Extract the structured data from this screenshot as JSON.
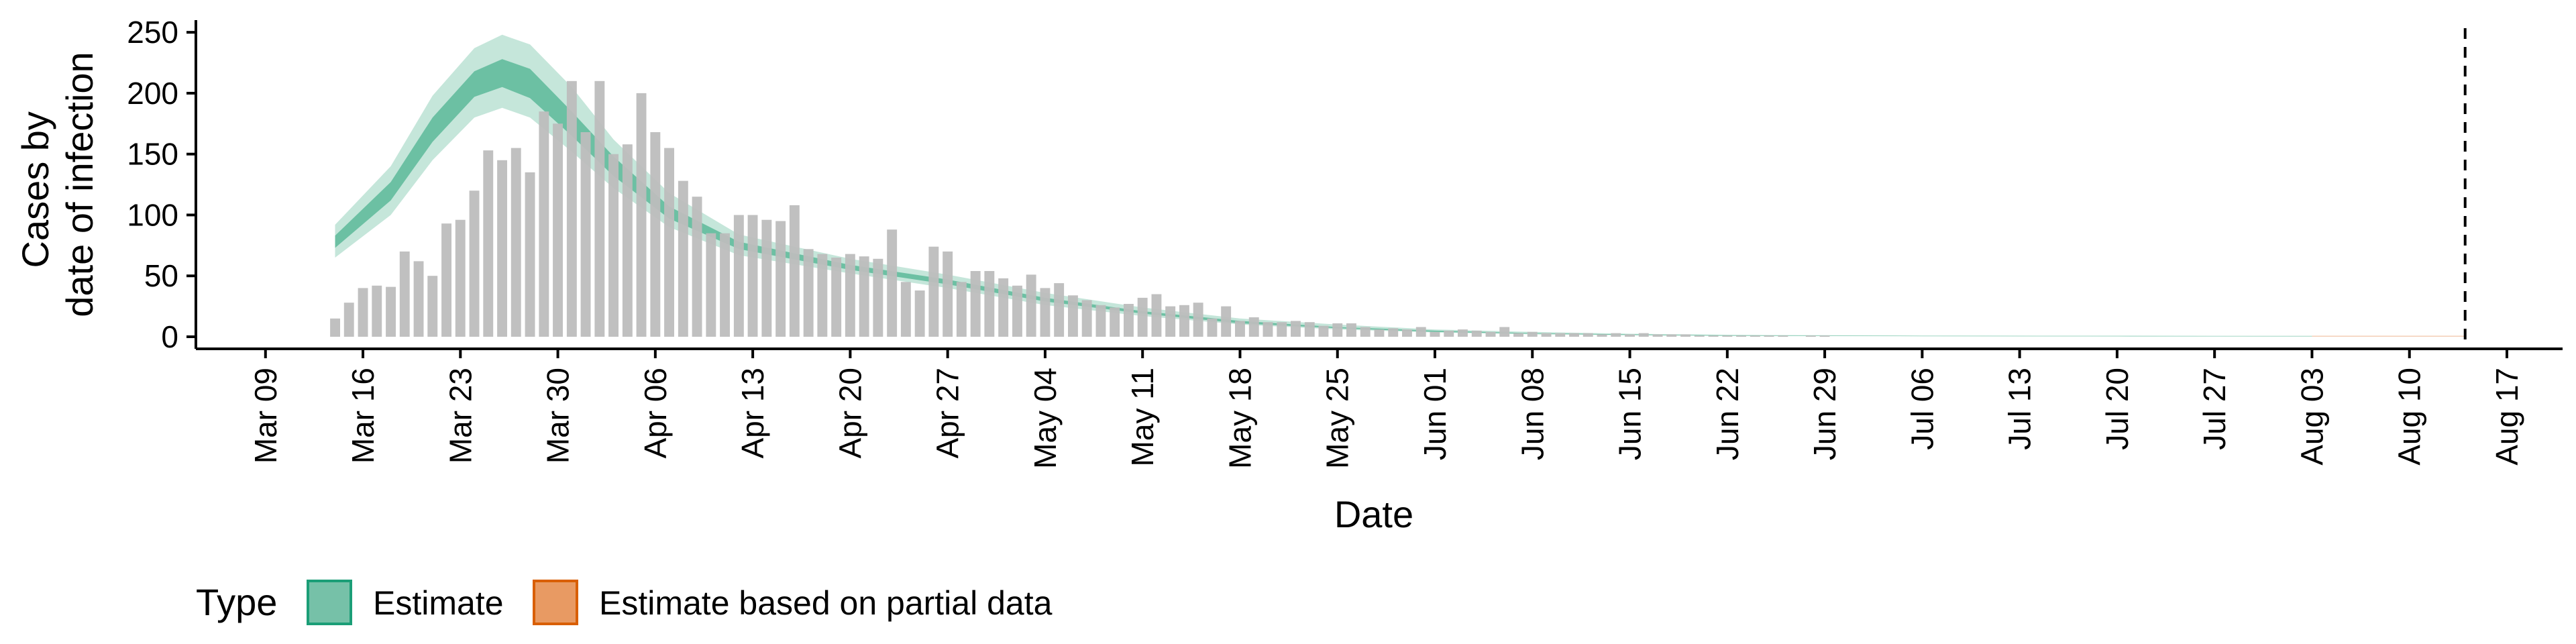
{
  "chart_data": {
    "type": "bar",
    "title": "",
    "xlabel": "Date",
    "ylabel": "Cases by\ndate of infection",
    "ylabel_lines": [
      "Cases by",
      "date of infection"
    ],
    "ylim": [
      0,
      260
    ],
    "yticks": [
      0,
      50,
      100,
      150,
      200,
      250
    ],
    "xlim": [
      "2020-03-04",
      "2020-08-21"
    ],
    "xticks": [
      "Mar 09",
      "Mar 16",
      "Mar 23",
      "Mar 30",
      "Apr 06",
      "Apr 13",
      "Apr 20",
      "Apr 27",
      "May 04",
      "May 11",
      "May 18",
      "May 25",
      "Jun 01",
      "Jun 08",
      "Jun 15",
      "Jun 22",
      "Jun 29",
      "Jul 06",
      "Jul 13",
      "Jul 20",
      "Jul 27",
      "Aug 03",
      "Aug 10",
      "Aug 17"
    ],
    "xtick_dates": [
      "2020-03-09",
      "2020-03-16",
      "2020-03-23",
      "2020-03-30",
      "2020-04-06",
      "2020-04-13",
      "2020-04-20",
      "2020-04-27",
      "2020-05-04",
      "2020-05-11",
      "2020-05-18",
      "2020-05-25",
      "2020-06-01",
      "2020-06-08",
      "2020-06-15",
      "2020-06-22",
      "2020-06-29",
      "2020-07-06",
      "2020-07-13",
      "2020-07-20",
      "2020-07-27",
      "2020-08-03",
      "2020-08-10",
      "2020-08-17"
    ],
    "vline_date": "2020-08-14",
    "grid": false,
    "legend": {
      "title": "Type",
      "position": "bottom-left",
      "items": [
        {
          "label": "Estimate",
          "fill": "#76c1a8",
          "stroke": "#1b9e77"
        },
        {
          "label": "Estimate based on partial data",
          "fill": "#e89a63",
          "stroke": "#d95f02"
        }
      ]
    },
    "colors": {
      "bar": "#bdbdbd",
      "estimate_outer": "#bfe3d6",
      "estimate_inner": "#6cc0a3",
      "partial": "#e9a67a",
      "axis": "#000000"
    },
    "bars": {
      "start_date": "2020-03-14",
      "values": [
        15,
        28,
        40,
        42,
        41,
        70,
        62,
        50,
        93,
        96,
        120,
        153,
        145,
        155,
        135,
        185,
        175,
        210,
        168,
        210,
        150,
        158,
        200,
        168,
        155,
        128,
        115,
        85,
        85,
        100,
        100,
        96,
        95,
        108,
        72,
        68,
        65,
        68,
        66,
        64,
        88,
        45,
        38,
        74,
        70,
        45,
        54,
        54,
        48,
        42,
        51,
        40,
        44,
        34,
        30,
        26,
        24,
        27,
        32,
        35,
        25,
        26,
        28,
        15,
        25,
        13,
        16,
        12,
        12,
        13,
        12,
        9,
        11,
        11,
        8,
        6,
        7,
        6,
        8,
        4,
        5,
        6,
        5,
        4,
        8,
        3,
        4,
        3,
        3,
        3,
        3,
        2,
        3,
        2,
        3,
        2,
        2,
        2,
        1,
        1,
        1,
        1,
        1,
        1,
        1,
        0,
        1,
        1,
        0,
        0
      ]
    },
    "estimate": {
      "start_date": "2020-03-14",
      "end_date": "2020-08-03",
      "points": [
        {
          "date": "2020-03-14",
          "lo90": 65,
          "lo50": 73,
          "hi50": 83,
          "hi90": 92
        },
        {
          "date": "2020-03-18",
          "lo90": 100,
          "lo50": 112,
          "hi50": 127,
          "hi90": 140
        },
        {
          "date": "2020-03-21",
          "lo90": 145,
          "lo50": 160,
          "hi50": 180,
          "hi90": 198
        },
        {
          "date": "2020-03-24",
          "lo90": 180,
          "lo50": 197,
          "hi50": 218,
          "hi90": 237
        },
        {
          "date": "2020-03-26",
          "lo90": 188,
          "lo50": 205,
          "hi50": 228,
          "hi90": 248
        },
        {
          "date": "2020-03-28",
          "lo90": 180,
          "lo50": 196,
          "hi50": 220,
          "hi90": 240
        },
        {
          "date": "2020-03-31",
          "lo90": 152,
          "lo50": 165,
          "hi50": 185,
          "hi90": 205
        },
        {
          "date": "2020-04-03",
          "lo90": 122,
          "lo50": 132,
          "hi50": 148,
          "hi90": 162
        },
        {
          "date": "2020-04-07",
          "lo90": 90,
          "lo50": 97,
          "hi50": 107,
          "hi90": 118
        },
        {
          "date": "2020-04-12",
          "lo90": 67,
          "lo50": 72,
          "hi50": 78,
          "hi90": 84
        },
        {
          "date": "2020-04-20",
          "lo90": 52,
          "lo50": 55,
          "hi50": 59,
          "hi90": 64
        },
        {
          "date": "2020-04-27",
          "lo90": 40,
          "lo50": 43,
          "hi50": 47,
          "hi90": 51
        },
        {
          "date": "2020-05-04",
          "lo90": 26,
          "lo50": 29,
          "hi50": 32,
          "hi90": 36
        },
        {
          "date": "2020-05-11",
          "lo90": 17,
          "lo50": 19,
          "hi50": 21,
          "hi90": 24
        },
        {
          "date": "2020-05-18",
          "lo90": 10,
          "lo50": 11,
          "hi50": 13,
          "hi90": 15
        },
        {
          "date": "2020-05-25",
          "lo90": 6,
          "lo50": 7,
          "hi50": 8,
          "hi90": 10
        },
        {
          "date": "2020-06-01",
          "lo90": 3.5,
          "lo50": 4,
          "hi50": 5,
          "hi90": 6
        },
        {
          "date": "2020-06-08",
          "lo90": 2,
          "lo50": 2.5,
          "hi50": 3,
          "hi90": 4
        },
        {
          "date": "2020-06-15",
          "lo90": 1.2,
          "lo50": 1.5,
          "hi50": 2,
          "hi90": 2.5
        },
        {
          "date": "2020-06-22",
          "lo90": 0.7,
          "lo50": 0.9,
          "hi50": 1.2,
          "hi90": 1.6
        },
        {
          "date": "2020-07-06",
          "lo90": 0.4,
          "lo50": 0.5,
          "hi50": 0.7,
          "hi90": 1
        },
        {
          "date": "2020-07-20",
          "lo90": 0.3,
          "lo50": 0.4,
          "hi50": 0.6,
          "hi90": 0.9
        },
        {
          "date": "2020-08-03",
          "lo90": 0.2,
          "lo50": 0.3,
          "hi50": 0.5,
          "hi90": 0.8
        }
      ]
    },
    "partial": {
      "start_date": "2020-08-03",
      "end_date": "2020-08-14",
      "points": [
        {
          "date": "2020-08-03",
          "lo90": 0.2,
          "lo50": 0.3,
          "hi50": 0.5,
          "hi90": 0.8
        },
        {
          "date": "2020-08-14",
          "lo90": 0.2,
          "lo50": 0.3,
          "hi50": 0.5,
          "hi90": 0.8
        }
      ]
    }
  }
}
